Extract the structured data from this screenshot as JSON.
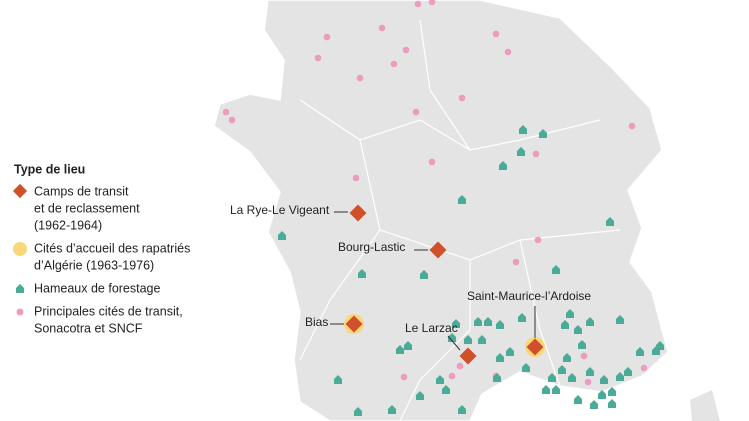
{
  "legend": {
    "title": "Type de lieu",
    "items": [
      {
        "lines": [
          "Camps de transit",
          "et de reclassement",
          "(1962-1964)"
        ]
      },
      {
        "lines": [
          "Cités d’accueil des rapatriés",
          "d’Algérie (1963-1976)"
        ]
      },
      {
        "lines": [
          "Hameaux de forestage"
        ]
      },
      {
        "lines": [
          "Principales cités de transit,",
          "Sonacotra et SNCF"
        ]
      }
    ]
  },
  "places": [
    {
      "label": "La Rye-Le Vigeant"
    },
    {
      "label": "Bourg-Lastic"
    },
    {
      "label": "Bias"
    },
    {
      "label": "Le Larzac"
    },
    {
      "label": "Saint-Maurice-l’Ardoise"
    }
  ]
}
